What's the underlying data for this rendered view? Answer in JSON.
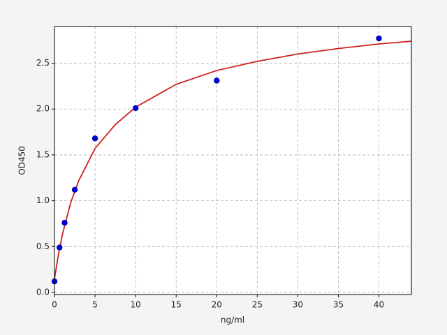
{
  "chart_data": {
    "type": "scatter",
    "xlabel": "ng/ml",
    "ylabel": "OD450",
    "xlim": [
      0,
      44
    ],
    "ylim": [
      -0.023,
      2.9
    ],
    "xticks": [
      0,
      5,
      10,
      15,
      20,
      25,
      30,
      35,
      40
    ],
    "yticks": [
      {
        "value": 0,
        "label": "0.0"
      },
      0.5,
      {
        "value": 1,
        "label": "1.0"
      },
      1.5,
      {
        "value": 2,
        "label": "2.0"
      },
      2.5
    ],
    "grid": true,
    "series": [
      {
        "type": "scatter",
        "color": "#0000cc",
        "x": [
          0,
          0.625,
          1.25,
          2.5,
          5,
          10,
          20,
          40
        ],
        "values": [
          0.12,
          0.49,
          0.76,
          1.12,
          1.68,
          2.01,
          2.31,
          2.77
        ]
      },
      {
        "type": "line",
        "color": "#cc1f1f",
        "x": [
          0,
          0.5,
          1,
          2,
          3,
          5,
          7.5,
          10,
          15,
          20,
          25,
          30,
          35,
          40,
          44
        ],
        "values": [
          0.15,
          0.42,
          0.64,
          0.98,
          1.22,
          1.57,
          1.83,
          2.02,
          2.27,
          2.42,
          2.52,
          2.6,
          2.66,
          2.71,
          2.74
        ]
      }
    ]
  }
}
